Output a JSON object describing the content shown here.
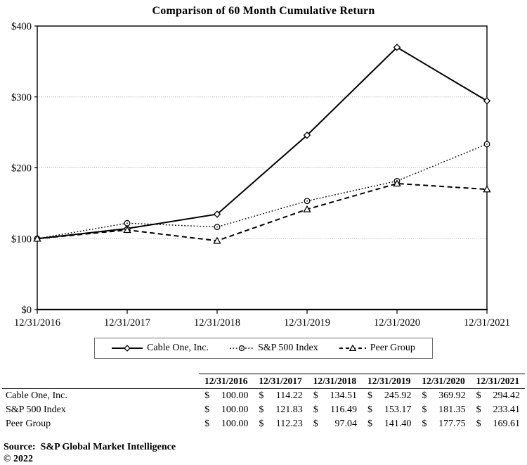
{
  "page": {
    "title": "Comparison of 60 Month Cumulative Return",
    "source_line": "Source:  S&P Global Market Intelligence",
    "copyright_line": "© 2022"
  },
  "chart_data": {
    "type": "line",
    "title": "Comparison of 60 Month Cumulative Return",
    "categories": [
      "12/31/2016",
      "12/31/2017",
      "12/31/2018",
      "12/31/2019",
      "12/31/2020",
      "12/31/2021"
    ],
    "series": [
      {
        "name": "Cable One, Inc.",
        "values": [
          100.0,
          114.22,
          134.51,
          245.92,
          369.92,
          294.42
        ],
        "line_style": "solid",
        "marker": "diamond"
      },
      {
        "name": "S&P 500 Index",
        "values": [
          100.0,
          121.83,
          116.49,
          153.17,
          181.35,
          233.41
        ],
        "line_style": "dotted",
        "marker": "circle"
      },
      {
        "name": "Peer Group",
        "values": [
          100.0,
          112.23,
          97.04,
          141.4,
          177.75,
          169.61
        ],
        "line_style": "dashed",
        "marker": "triangle"
      }
    ],
    "xlabel": "",
    "ylabel": "",
    "ylim": [
      0,
      400
    ],
    "yticks": [
      0,
      100,
      200,
      300,
      400
    ],
    "ytick_labels": [
      "$0",
      "$100",
      "$200",
      "$300",
      "$400"
    ],
    "grid": true,
    "legend_position": "bottom"
  },
  "table": {
    "columns": [
      "12/31/2016",
      "12/31/2017",
      "12/31/2018",
      "12/31/2019",
      "12/31/2020",
      "12/31/2021"
    ],
    "rows": [
      {
        "label": "Cable One, Inc.",
        "currency": "$",
        "values": [
          "100.00",
          "114.22",
          "134.51",
          "245.92",
          "369.92",
          "294.42"
        ]
      },
      {
        "label": "S&P 500 Index",
        "currency": "$",
        "values": [
          "100.00",
          "121.83",
          "116.49",
          "153.17",
          "181.35",
          "233.41"
        ]
      },
      {
        "label": "Peer Group",
        "currency": "$",
        "values": [
          "100.00",
          "112.23",
          "97.04",
          "141.40",
          "177.75",
          "169.61"
        ]
      }
    ]
  },
  "colors": {
    "line": "#000000",
    "grid": "#a6a6a6",
    "axis": "#000000",
    "background": "#ffffff",
    "legend_border": "#6f6f6f"
  }
}
